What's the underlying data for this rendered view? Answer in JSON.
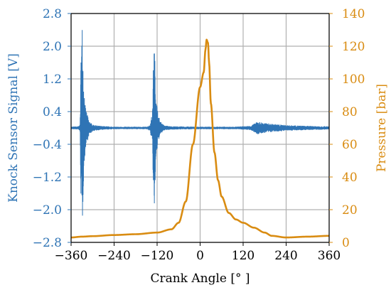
{
  "chart_data": {
    "type": "line",
    "colors": {
      "knock": "#2f74b5",
      "pressure": "#d98c12",
      "grid": "#b0b0b0"
    },
    "xlabel": "Crank Angle [° ]",
    "ylabel_left": "Knock Sensor Signal [V]",
    "ylabel_right": "Pressure [bar]",
    "xlim": [
      -360,
      360
    ],
    "ylim_left": [
      -2.8,
      2.8
    ],
    "ylim_right": [
      0,
      140
    ],
    "x_ticks": [
      "−360",
      "−240",
      "−120",
      "0",
      "120",
      "240",
      "360"
    ],
    "y_left_ticks": [
      "2.8",
      "2.0",
      "1.2",
      "0.4",
      "−0.4",
      "−1.2",
      "−2.0",
      "−2.8"
    ],
    "y_right_ticks": [
      "140",
      "120",
      "100",
      "80",
      "60",
      "40",
      "20",
      "0"
    ],
    "grid": true,
    "series": [
      {
        "axis": "left",
        "envelope": [
          [
            -360,
            0.0,
            0.03
          ],
          [
            -340,
            0.0,
            0.04
          ],
          [
            -335,
            0.0,
            0.08
          ],
          [
            -332,
            0.0,
            2.1
          ],
          [
            -329,
            0.0,
            2.6
          ],
          [
            -325,
            0.0,
            1.2
          ],
          [
            -320,
            0.0,
            0.5
          ],
          [
            -310,
            0.0,
            0.18
          ],
          [
            -300,
            0.0,
            0.08
          ],
          [
            -280,
            0.0,
            0.05
          ],
          [
            -240,
            0.0,
            0.03
          ],
          [
            -150,
            0.0,
            0.03
          ],
          [
            -140,
            0.0,
            0.07
          ],
          [
            -133,
            0.0,
            0.4
          ],
          [
            -130,
            0.0,
            1.8
          ],
          [
            -128,
            0.0,
            2.2
          ],
          [
            -124,
            0.0,
            1.0
          ],
          [
            -118,
            0.0,
            0.35
          ],
          [
            -110,
            0.0,
            0.15
          ],
          [
            -100,
            0.0,
            0.06
          ],
          [
            -80,
            0.0,
            0.04
          ],
          [
            0,
            0.0,
            0.03
          ],
          [
            100,
            0.0,
            0.03
          ],
          [
            140,
            0.0,
            0.05
          ],
          [
            150,
            0.0,
            0.1
          ],
          [
            160,
            0.0,
            0.16
          ],
          [
            180,
            0.0,
            0.12
          ],
          [
            200,
            0.0,
            0.1
          ],
          [
            240,
            0.0,
            0.07
          ],
          [
            300,
            0.0,
            0.05
          ],
          [
            360,
            0.0,
            0.04
          ]
        ]
      },
      {
        "axis": "right",
        "x": [
          -360,
          -330,
          -300,
          -240,
          -180,
          -120,
          -80,
          -60,
          -40,
          -20,
          0,
          10,
          15,
          18,
          22,
          25,
          30,
          40,
          50,
          60,
          80,
          100,
          120,
          150,
          180,
          200,
          240,
          300,
          360
        ],
        "values": [
          3.0,
          3.5,
          3.8,
          4.5,
          5.0,
          6.0,
          8.0,
          12.0,
          25.0,
          60.0,
          95.0,
          104.0,
          118.0,
          124.0,
          122.0,
          110.0,
          85.0,
          55.0,
          38.0,
          28.0,
          18.0,
          14.0,
          12.0,
          9.0,
          6.0,
          4.0,
          3.0,
          3.5,
          4.0
        ]
      }
    ]
  }
}
